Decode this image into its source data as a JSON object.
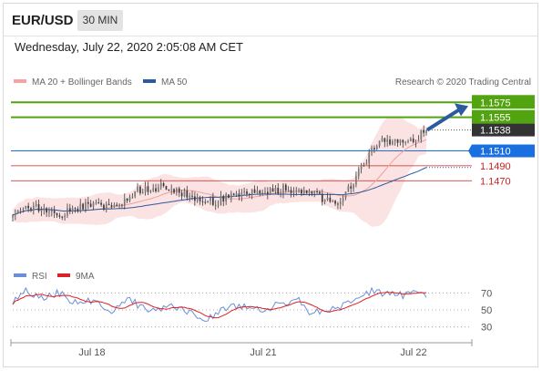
{
  "header": {
    "symbol": "EUR/USD",
    "timeframe": "30 MIN",
    "timestamp": "Wednesday, July 22, 2020 2:05:08 AM CET"
  },
  "legend": {
    "ma20": {
      "label": "MA 20 + Bollinger Bands",
      "color": "#f5a3a3"
    },
    "ma50": {
      "label": "MA 50",
      "color": "#2b5aa0"
    },
    "credit": "Research © 2020 Trading Central"
  },
  "rsi_legend": {
    "rsi": {
      "label": "RSI",
      "color": "#6a8fd8"
    },
    "ma9": {
      "label": "9MA",
      "color": "#e02020"
    }
  },
  "colors": {
    "green": "#52a310",
    "blue": "#1a6fe0",
    "red": "#cc2222",
    "dark": "#333333",
    "candle": "#3a3a3a",
    "band": "#fbe3e3"
  },
  "chart_data": [
    {
      "type": "candlestick",
      "x_ticks": [
        "Jul 18",
        "Jul 21",
        "Jul 22"
      ],
      "ylim": [
        1.138,
        1.159
      ],
      "levels": [
        {
          "value": 1.1575,
          "label": "1.1575",
          "kind": "resistance"
        },
        {
          "value": 1.1555,
          "label": "1.1555",
          "kind": "resistance"
        },
        {
          "value": 1.1538,
          "label": "1.1538",
          "kind": "last"
        },
        {
          "value": 1.151,
          "label": "1.1510",
          "kind": "pivot"
        },
        {
          "value": 1.149,
          "label": "1.1490",
          "kind": "support"
        },
        {
          "value": 1.147,
          "label": "1.1470",
          "kind": "support"
        }
      ],
      "path_anchors": [
        [
          0,
          1.143
        ],
        [
          8,
          1.1435
        ],
        [
          18,
          1.1425
        ],
        [
          30,
          1.144
        ],
        [
          40,
          1.1432
        ],
        [
          48,
          1.1458
        ],
        [
          60,
          1.1462
        ],
        [
          68,
          1.1448
        ],
        [
          78,
          1.1443
        ],
        [
          88,
          1.145
        ],
        [
          100,
          1.1458
        ],
        [
          110,
          1.146
        ],
        [
          120,
          1.1445
        ],
        [
          125,
          1.144
        ],
        [
          132,
          1.1475
        ],
        [
          138,
          1.1508
        ],
        [
          142,
          1.1526
        ],
        [
          148,
          1.1523
        ],
        [
          152,
          1.152
        ],
        [
          159,
          1.1538
        ]
      ],
      "candles_count": 160
    },
    {
      "type": "line",
      "series": [
        {
          "name": "RSI",
          "color": "#6a8fd8"
        },
        {
          "name": "9MA",
          "color": "#e02020"
        }
      ],
      "y_ticks": [
        70,
        50,
        30
      ],
      "rsi_anchors": [
        [
          0,
          60
        ],
        [
          5,
          72
        ],
        [
          10,
          64
        ],
        [
          18,
          70
        ],
        [
          25,
          57
        ],
        [
          32,
          62
        ],
        [
          38,
          46
        ],
        [
          45,
          62
        ],
        [
          52,
          49
        ],
        [
          60,
          54
        ],
        [
          68,
          47
        ],
        [
          74,
          37
        ],
        [
          80,
          50
        ],
        [
          88,
          55
        ],
        [
          96,
          51
        ],
        [
          104,
          57
        ],
        [
          110,
          64
        ],
        [
          114,
          45
        ],
        [
          120,
          49
        ],
        [
          126,
          52
        ],
        [
          132,
          64
        ],
        [
          138,
          72
        ],
        [
          144,
          70
        ],
        [
          150,
          67
        ],
        [
          155,
          70
        ],
        [
          159,
          66
        ]
      ]
    }
  ]
}
